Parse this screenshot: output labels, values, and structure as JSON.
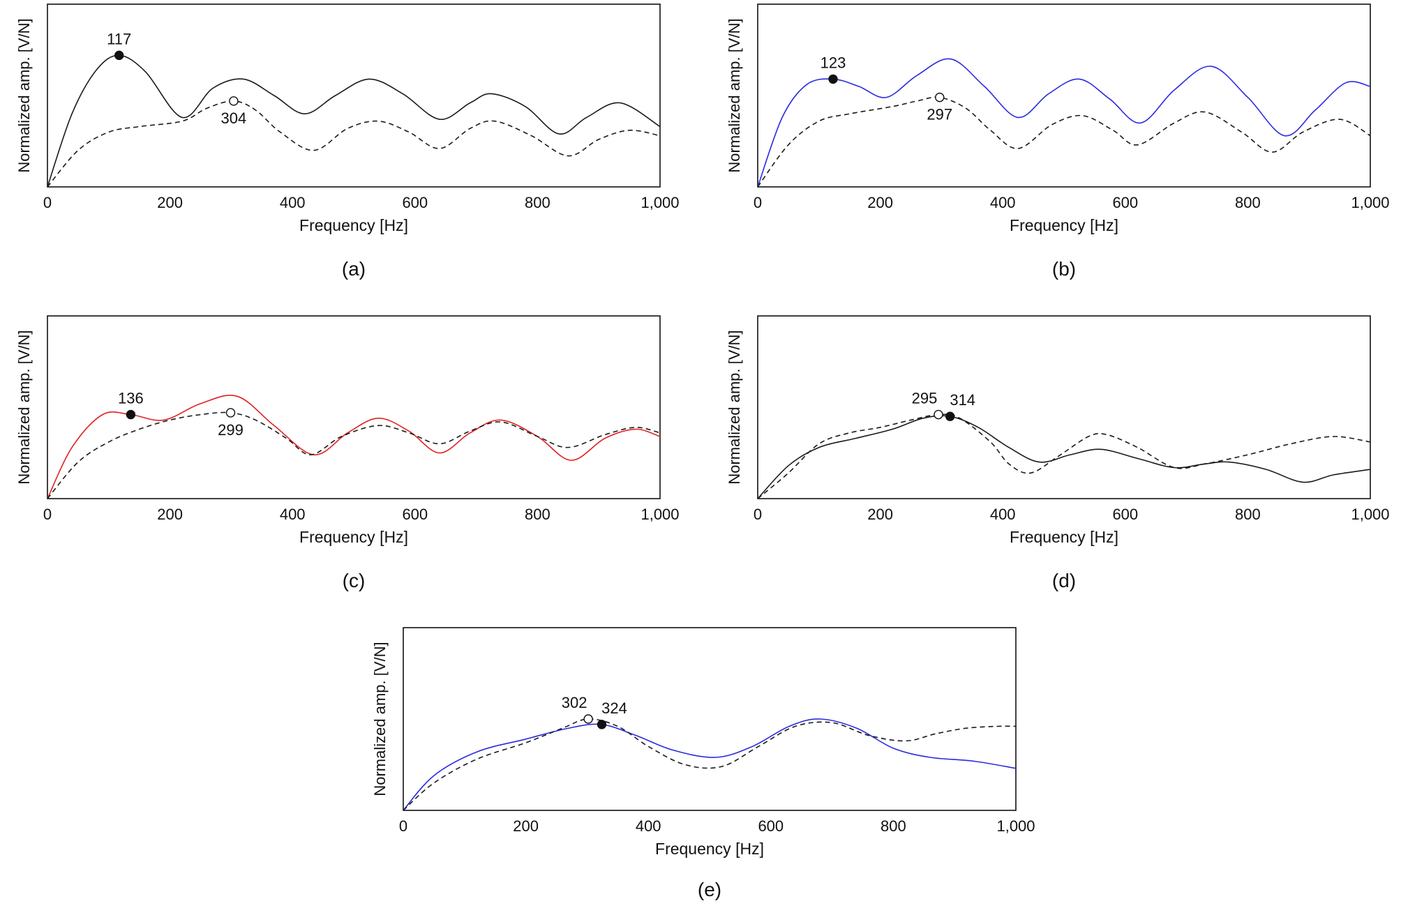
{
  "figure": {
    "panel_captions": [
      "(a)",
      "(b)",
      "(c)",
      "(d)",
      "(e)"
    ]
  },
  "chart_data": [
    {
      "type": "line",
      "panel": "(a)",
      "xlabel": "Frequency [Hz]",
      "ylabel": "Normalized amp. [V/N]",
      "xlim": [
        0,
        1000
      ],
      "ylim": [
        0,
        1
      ],
      "xticks": [
        "0",
        "200",
        "400",
        "600",
        "800",
        "1,000"
      ],
      "series": [
        {
          "name": "solid",
          "color": "#1a1a1a",
          "dash": false,
          "x": [
            0,
            40,
            80,
            117,
            160,
            220,
            270,
            320,
            370,
            420,
            470,
            525,
            580,
            640,
            690,
            725,
            780,
            835,
            880,
            935,
            1000
          ],
          "y": [
            0,
            0.4,
            0.64,
            0.72,
            0.63,
            0.38,
            0.54,
            0.59,
            0.5,
            0.4,
            0.5,
            0.59,
            0.51,
            0.37,
            0.46,
            0.51,
            0.44,
            0.29,
            0.38,
            0.46,
            0.33
          ]
        },
        {
          "name": "dashed",
          "color": "#1a1a1a",
          "dash": true,
          "x": [
            0,
            50,
            100,
            150,
            220,
            260,
            304,
            340,
            380,
            435,
            490,
            540,
            590,
            640,
            690,
            730,
            790,
            850,
            900,
            950,
            1000
          ],
          "y": [
            0,
            0.2,
            0.3,
            0.33,
            0.36,
            0.43,
            0.47,
            0.42,
            0.3,
            0.2,
            0.32,
            0.36,
            0.3,
            0.21,
            0.32,
            0.36,
            0.28,
            0.17,
            0.26,
            0.31,
            0.28
          ]
        }
      ],
      "peaks": [
        {
          "label": "117",
          "x": 117,
          "y": 0.72,
          "marker": "filled",
          "label_pos": "above"
        },
        {
          "label": "304",
          "x": 304,
          "y": 0.47,
          "marker": "open",
          "label_pos": "below"
        }
      ]
    },
    {
      "type": "line",
      "panel": "(b)",
      "xlabel": "Frequency [Hz]",
      "ylabel": "Normalized amp. [V/N]",
      "xlim": [
        0,
        1000
      ],
      "ylim": [
        0,
        1
      ],
      "xticks": [
        "0",
        "200",
        "400",
        "600",
        "800",
        "1,000"
      ],
      "series": [
        {
          "name": "solid",
          "color": "#2a2ae0",
          "dash": false,
          "x": [
            0,
            40,
            80,
            123,
            165,
            210,
            260,
            315,
            370,
            425,
            475,
            525,
            575,
            625,
            680,
            740,
            800,
            860,
            910,
            960,
            1000
          ],
          "y": [
            0,
            0.38,
            0.56,
            0.59,
            0.55,
            0.49,
            0.61,
            0.7,
            0.55,
            0.38,
            0.51,
            0.59,
            0.48,
            0.35,
            0.53,
            0.66,
            0.49,
            0.28,
            0.42,
            0.57,
            0.55
          ]
        },
        {
          "name": "dashed",
          "color": "#1a1a1a",
          "dash": true,
          "x": [
            0,
            50,
            100,
            150,
            220,
            260,
            297,
            340,
            380,
            425,
            480,
            530,
            580,
            620,
            680,
            730,
            790,
            840,
            890,
            950,
            1000
          ],
          "y": [
            0,
            0.23,
            0.36,
            0.4,
            0.44,
            0.47,
            0.49,
            0.43,
            0.31,
            0.21,
            0.34,
            0.39,
            0.31,
            0.23,
            0.35,
            0.41,
            0.3,
            0.19,
            0.3,
            0.37,
            0.28
          ]
        }
      ],
      "peaks": [
        {
          "label": "123",
          "x": 123,
          "y": 0.59,
          "marker": "filled",
          "label_pos": "above"
        },
        {
          "label": "297",
          "x": 297,
          "y": 0.49,
          "marker": "open",
          "label_pos": "below"
        }
      ]
    },
    {
      "type": "line",
      "panel": "(c)",
      "xlabel": "Frequency [Hz]",
      "ylabel": "Normalized amp. [V/N]",
      "xlim": [
        0,
        1000
      ],
      "ylim": [
        0,
        1
      ],
      "xticks": [
        "0",
        "200",
        "400",
        "600",
        "800",
        "1,000"
      ],
      "series": [
        {
          "name": "solid",
          "color": "#e02020",
          "dash": false,
          "x": [
            0,
            40,
            90,
            136,
            190,
            250,
            310,
            370,
            435,
            490,
            540,
            590,
            640,
            690,
            740,
            800,
            855,
            910,
            960,
            1000
          ],
          "y": [
            0,
            0.28,
            0.46,
            0.46,
            0.43,
            0.52,
            0.56,
            0.4,
            0.24,
            0.36,
            0.44,
            0.37,
            0.25,
            0.36,
            0.43,
            0.34,
            0.21,
            0.33,
            0.38,
            0.34
          ]
        },
        {
          "name": "dashed",
          "color": "#1a1a1a",
          "dash": true,
          "x": [
            0,
            50,
            100,
            150,
            200,
            250,
            299,
            340,
            390,
            430,
            480,
            540,
            590,
            640,
            690,
            740,
            800,
            850,
            910,
            960,
            1000
          ],
          "y": [
            0,
            0.2,
            0.31,
            0.38,
            0.43,
            0.46,
            0.47,
            0.43,
            0.33,
            0.24,
            0.34,
            0.4,
            0.36,
            0.3,
            0.37,
            0.42,
            0.34,
            0.28,
            0.35,
            0.39,
            0.36
          ]
        }
      ],
      "peaks": [
        {
          "label": "136",
          "x": 136,
          "y": 0.46,
          "marker": "filled",
          "label_pos": "above"
        },
        {
          "label": "299",
          "x": 299,
          "y": 0.47,
          "marker": "open",
          "label_pos": "below"
        }
      ]
    },
    {
      "type": "line",
      "panel": "(d)",
      "xlabel": "Frequency [Hz]",
      "ylabel": "Normalized amp. [V/N]",
      "xlim": [
        0,
        1000
      ],
      "ylim": [
        0,
        1
      ],
      "xticks": [
        "0",
        "200",
        "400",
        "600",
        "800",
        "1,000"
      ],
      "series": [
        {
          "name": "solid",
          "color": "#1a1a1a",
          "dash": false,
          "x": [
            0,
            50,
            100,
            160,
            220,
            270,
            314,
            360,
            410,
            460,
            510,
            560,
            620,
            680,
            730,
            770,
            830,
            890,
            940,
            1000
          ],
          "y": [
            0,
            0.18,
            0.28,
            0.33,
            0.38,
            0.44,
            0.45,
            0.39,
            0.28,
            0.2,
            0.24,
            0.27,
            0.22,
            0.17,
            0.19,
            0.2,
            0.16,
            0.09,
            0.13,
            0.16
          ]
        },
        {
          "name": "dashed",
          "color": "#1a1a1a",
          "dash": true,
          "x": [
            0,
            50,
            100,
            150,
            200,
            250,
            295,
            330,
            380,
            410,
            445,
            490,
            540,
            570,
            620,
            680,
            730,
            800,
            870,
            940,
            1000
          ],
          "y": [
            0,
            0.14,
            0.3,
            0.36,
            0.39,
            0.43,
            0.46,
            0.44,
            0.31,
            0.19,
            0.14,
            0.23,
            0.34,
            0.35,
            0.28,
            0.17,
            0.19,
            0.24,
            0.3,
            0.34,
            0.31
          ]
        }
      ],
      "peaks": [
        {
          "label": "295",
          "x": 295,
          "y": 0.46,
          "marker": "open",
          "label_pos": "above"
        },
        {
          "label": "314",
          "x": 314,
          "y": 0.45,
          "marker": "filled",
          "label_pos": "above"
        }
      ]
    },
    {
      "type": "line",
      "panel": "(e)",
      "xlabel": "Frequency [Hz]",
      "ylabel": "Normalized amp. [V/N]",
      "xlim": [
        0,
        1000
      ],
      "ylim": [
        0,
        1
      ],
      "xticks": [
        "0",
        "200",
        "400",
        "600",
        "800",
        "1,000"
      ],
      "series": [
        {
          "name": "solid",
          "color": "#2a2ae0",
          "dash": false,
          "x": [
            0,
            50,
            120,
            200,
            270,
            324,
            380,
            440,
            510,
            570,
            630,
            680,
            740,
            800,
            860,
            930,
            1000
          ],
          "y": [
            0,
            0.19,
            0.32,
            0.39,
            0.45,
            0.47,
            0.41,
            0.33,
            0.29,
            0.35,
            0.46,
            0.5,
            0.45,
            0.34,
            0.29,
            0.27,
            0.23
          ]
        },
        {
          "name": "dashed",
          "color": "#1a1a1a",
          "dash": true,
          "x": [
            0,
            50,
            120,
            200,
            260,
            302,
            350,
            400,
            460,
            520,
            580,
            640,
            700,
            760,
            820,
            870,
            920,
            970,
            1000
          ],
          "y": [
            0,
            0.15,
            0.28,
            0.37,
            0.45,
            0.5,
            0.46,
            0.35,
            0.25,
            0.24,
            0.35,
            0.46,
            0.48,
            0.41,
            0.38,
            0.42,
            0.45,
            0.46,
            0.46
          ]
        }
      ],
      "peaks": [
        {
          "label": "302",
          "x": 302,
          "y": 0.5,
          "marker": "open",
          "label_pos": "above"
        },
        {
          "label": "324",
          "x": 324,
          "y": 0.47,
          "marker": "filled",
          "label_pos": "above"
        }
      ]
    }
  ]
}
